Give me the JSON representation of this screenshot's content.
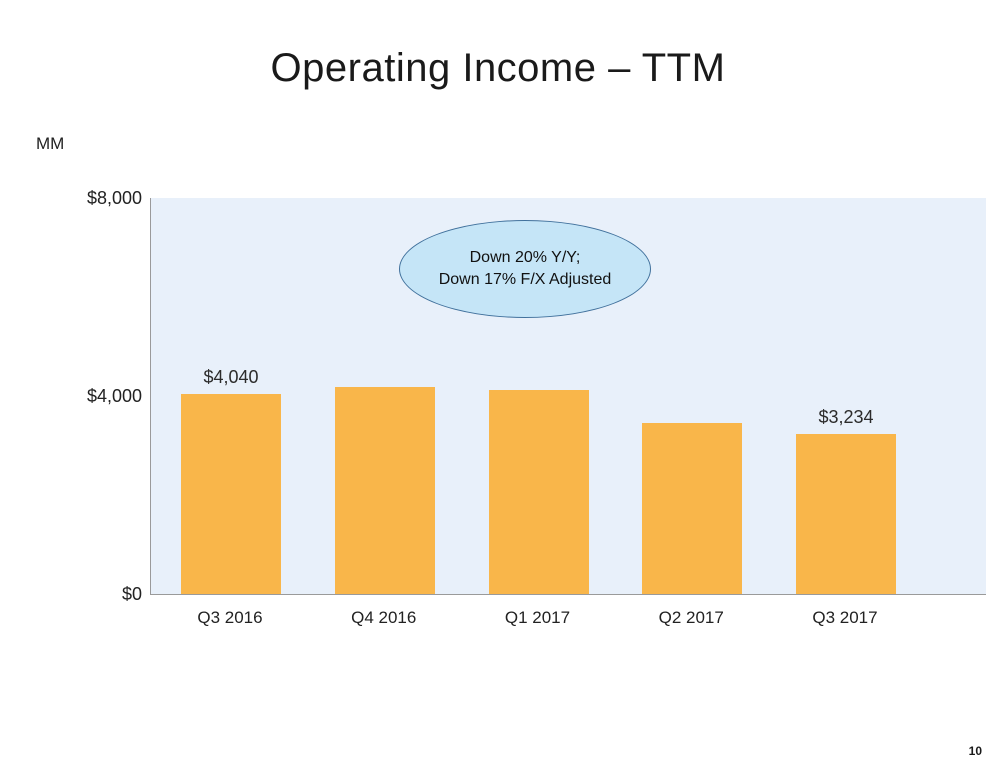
{
  "slide": {
    "title": "Operating Income – TTM",
    "units_label": "MM",
    "page_number": "10"
  },
  "annotation": {
    "line1": "Down 20% Y/Y;",
    "line2": "Down 17% F/X Adjusted"
  },
  "chart_data": {
    "type": "bar",
    "title": "Operating Income – TTM",
    "categories": [
      "Q3 2016",
      "Q4 2016",
      "Q1 2017",
      "Q2 2017",
      "Q3 2017"
    ],
    "values": [
      4040,
      4186,
      4120,
      3463,
      3234
    ],
    "data_labels": [
      "$4,040",
      null,
      null,
      null,
      "$3,234"
    ],
    "xlabel": "",
    "ylabel": "MM",
    "ylim": [
      0,
      8000
    ],
    "yticks": [
      {
        "value": 0,
        "label": "$0"
      },
      {
        "value": 4000,
        "label": "$4,000"
      },
      {
        "value": 8000,
        "label": "$8,000"
      }
    ],
    "grid": false,
    "legend": "none",
    "annotation": "Down 20% Y/Y; Down 17% F/X Adjusted",
    "bar_color": "#f9b64a",
    "plot_bg": "#e8f0fa"
  }
}
